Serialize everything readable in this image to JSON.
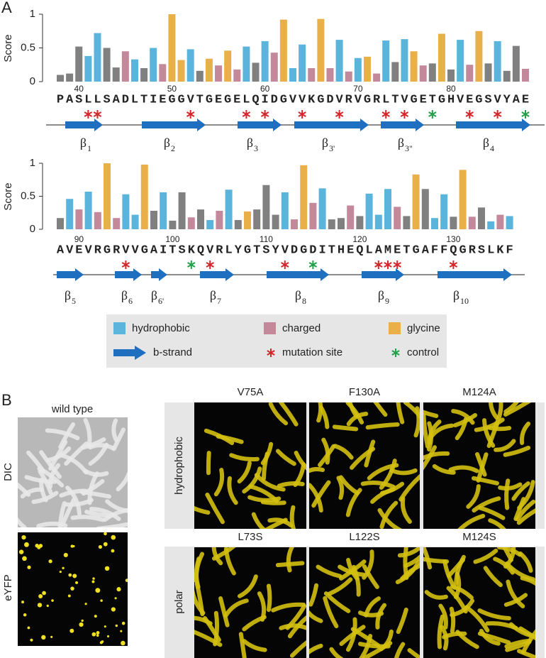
{
  "panel_a_label": "A",
  "chart_data": [
    {
      "type": "bar",
      "y_label": "Score",
      "ylim": [
        0,
        1
      ],
      "yticks": [
        0,
        0.5,
        1
      ],
      "x": [
        38,
        39,
        40,
        41,
        42,
        43,
        44,
        45,
        46,
        47,
        48,
        49,
        50,
        51,
        52,
        53,
        54,
        55,
        56,
        57,
        58,
        59,
        60,
        61,
        62,
        63,
        64,
        65,
        66,
        67,
        68,
        69,
        70,
        71,
        72,
        73,
        74,
        75,
        76,
        77,
        78,
        79,
        80,
        81,
        82,
        83,
        84,
        85,
        86,
        87,
        88
      ],
      "categories": [
        "P",
        "A",
        "S",
        "L",
        "L",
        "S",
        "A",
        "D",
        "L",
        "T",
        "I",
        "E",
        "G",
        "G",
        "V",
        "T",
        "G",
        "E",
        "G",
        "E",
        "L",
        "Q",
        "I",
        "D",
        "G",
        "V",
        "V",
        "K",
        "G",
        "D",
        "V",
        "R",
        "V",
        "G",
        "R",
        "L",
        "T",
        "V",
        "G",
        "E",
        "T",
        "G",
        "H",
        "V",
        "E",
        "G",
        "S",
        "V",
        "Y",
        "A",
        "E"
      ],
      "values": [
        0.1,
        0.12,
        0.52,
        0.38,
        0.72,
        0.5,
        0.21,
        0.45,
        0.33,
        0.2,
        0.5,
        0.26,
        1.0,
        0.32,
        0.48,
        0.16,
        0.34,
        0.24,
        0.46,
        0.18,
        0.52,
        0.28,
        0.6,
        0.43,
        0.92,
        0.2,
        0.55,
        0.2,
        0.93,
        0.2,
        0.62,
        0.15,
        0.35,
        0.37,
        0.12,
        0.61,
        0.29,
        0.63,
        0.45,
        0.24,
        0.27,
        0.71,
        0.18,
        0.62,
        0.25,
        0.75,
        0.27,
        0.6,
        0.16,
        0.53,
        0.19
      ],
      "colors": [
        "#808080",
        "#808080",
        "#808080",
        "#5ab4dc",
        "#5ab4dc",
        "#808080",
        "#808080",
        "#c4889b",
        "#5ab4dc",
        "#808080",
        "#5ab4dc",
        "#c4889b",
        "#e9b04a",
        "#e9b04a",
        "#5ab4dc",
        "#808080",
        "#e9b04a",
        "#c4889b",
        "#e9b04a",
        "#c4889b",
        "#5ab4dc",
        "#808080",
        "#5ab4dc",
        "#c4889b",
        "#e9b04a",
        "#5ab4dc",
        "#5ab4dc",
        "#c4889b",
        "#e9b04a",
        "#c4889b",
        "#5ab4dc",
        "#c4889b",
        "#5ab4dc",
        "#e9b04a",
        "#c4889b",
        "#5ab4dc",
        "#808080",
        "#5ab4dc",
        "#e9b04a",
        "#c4889b",
        "#808080",
        "#e9b04a",
        "#808080",
        "#5ab4dc",
        "#c4889b",
        "#e9b04a",
        "#808080",
        "#5ab4dc",
        "#808080",
        "#808080",
        "#c4889b"
      ],
      "xticks": [
        40,
        50,
        60,
        70,
        80
      ],
      "mutation_sites": [
        41,
        42,
        52,
        58,
        60,
        64,
        68,
        73,
        75,
        82,
        85
      ],
      "controls": [
        78,
        88
      ],
      "strands": [
        {
          "label": "β",
          "sub": "1"
        },
        {
          "label": "β",
          "sub": "2"
        },
        {
          "label": "β",
          "sub": "3"
        },
        {
          "label": "β",
          "sub": "3'"
        },
        {
          "label": "β",
          "sub": "3\""
        },
        {
          "label": "β",
          "sub": "4"
        }
      ]
    },
    {
      "type": "bar",
      "y_label": "Score",
      "ylim": [
        0,
        1
      ],
      "yticks": [
        0,
        0.5,
        1
      ],
      "x": [
        88,
        89,
        90,
        91,
        92,
        93,
        94,
        95,
        96,
        97,
        98,
        99,
        100,
        101,
        102,
        103,
        104,
        105,
        106,
        107,
        108,
        109,
        110,
        111,
        112,
        113,
        114,
        115,
        116,
        117,
        118,
        119,
        120,
        121,
        122,
        123,
        124,
        125,
        126,
        127,
        128,
        129,
        130,
        131,
        132,
        133,
        134,
        135,
        136
      ],
      "categories": [
        "A",
        "V",
        "E",
        "V",
        "R",
        "G",
        "R",
        "V",
        "V",
        "G",
        "A",
        "I",
        "T",
        "S",
        "K",
        "Q",
        "V",
        "R",
        "L",
        "Y",
        "G",
        "T",
        "S",
        "Y",
        "V",
        "D",
        "G",
        "D",
        "I",
        "T",
        "H",
        "E",
        "Q",
        "L",
        "A",
        "M",
        "E",
        "T",
        "G",
        "A",
        "F",
        "F",
        "Q",
        "G",
        "R",
        "S",
        "L",
        "K",
        "F"
      ],
      "values": [
        0.17,
        0.46,
        0.3,
        0.57,
        0.26,
        1.0,
        0.17,
        0.53,
        0.22,
        0.98,
        0.28,
        0.56,
        0.13,
        0.56,
        0.18,
        0.3,
        0.14,
        0.28,
        0.6,
        0.14,
        0.27,
        0.3,
        0.67,
        0.22,
        0.56,
        0.15,
        0.97,
        0.4,
        0.62,
        0.15,
        0.17,
        0.36,
        0.2,
        0.54,
        0.22,
        0.61,
        0.34,
        0.2,
        0.83,
        0.61,
        0.17,
        0.53,
        0.19,
        0.9,
        0.19,
        0.33,
        0.12,
        0.22,
        0.2
      ],
      "colors": [
        "#808080",
        "#5ab4dc",
        "#c4889b",
        "#5ab4dc",
        "#c4889b",
        "#e9b04a",
        "#c4889b",
        "#5ab4dc",
        "#5ab4dc",
        "#e9b04a",
        "#808080",
        "#5ab4dc",
        "#808080",
        "#808080",
        "#c4889b",
        "#808080",
        "#5ab4dc",
        "#c4889b",
        "#5ab4dc",
        "#808080",
        "#e9b04a",
        "#808080",
        "#808080",
        "#808080",
        "#5ab4dc",
        "#c4889b",
        "#e9b04a",
        "#c4889b",
        "#5ab4dc",
        "#808080",
        "#808080",
        "#c4889b",
        "#808080",
        "#5ab4dc",
        "#5ab4dc",
        "#5ab4dc",
        "#c4889b",
        "#808080",
        "#e9b04a",
        "#808080",
        "#5ab4dc",
        "#5ab4dc",
        "#808080",
        "#e9b04a",
        "#c4889b",
        "#808080",
        "#5ab4dc",
        "#c4889b",
        "#5ab4dc"
      ],
      "xticks": [
        90,
        100,
        110,
        120,
        130
      ],
      "mutation_sites": [
        95,
        104,
        112,
        122,
        123,
        124,
        130
      ],
      "controls": [
        102,
        115
      ],
      "strands": [
        {
          "label": "β",
          "sub": "5"
        },
        {
          "label": "β",
          "sub": "6"
        },
        {
          "label": "β",
          "sub": "6'"
        },
        {
          "label": "β",
          "sub": "7"
        },
        {
          "label": "β",
          "sub": "8"
        },
        {
          "label": "β",
          "sub": "9"
        },
        {
          "label": "β",
          "sub": "10"
        }
      ]
    }
  ],
  "legend": [
    {
      "name": "hydrophobic",
      "color": "#5ab4dc"
    },
    {
      "name": "charged",
      "color": "#c4889b"
    },
    {
      "name": "glycine",
      "color": "#e9b04a"
    },
    {
      "name": "b-strand",
      "color": "#1f6fc0"
    },
    {
      "name": "mutation site",
      "color": "#d7262b"
    },
    {
      "name": "control",
      "color": "#22a04a"
    }
  ],
  "panel_b": {
    "label": "B",
    "wild_type": "wild type",
    "rows_left": [
      "DIC",
      "eYFP"
    ],
    "groups": [
      {
        "name": "hydrophobic",
        "mutants": [
          "V75A",
          "F130A",
          "M124A"
        ]
      },
      {
        "name": "polar",
        "mutants": [
          "L73S",
          "L122S",
          "M124S"
        ]
      }
    ]
  }
}
